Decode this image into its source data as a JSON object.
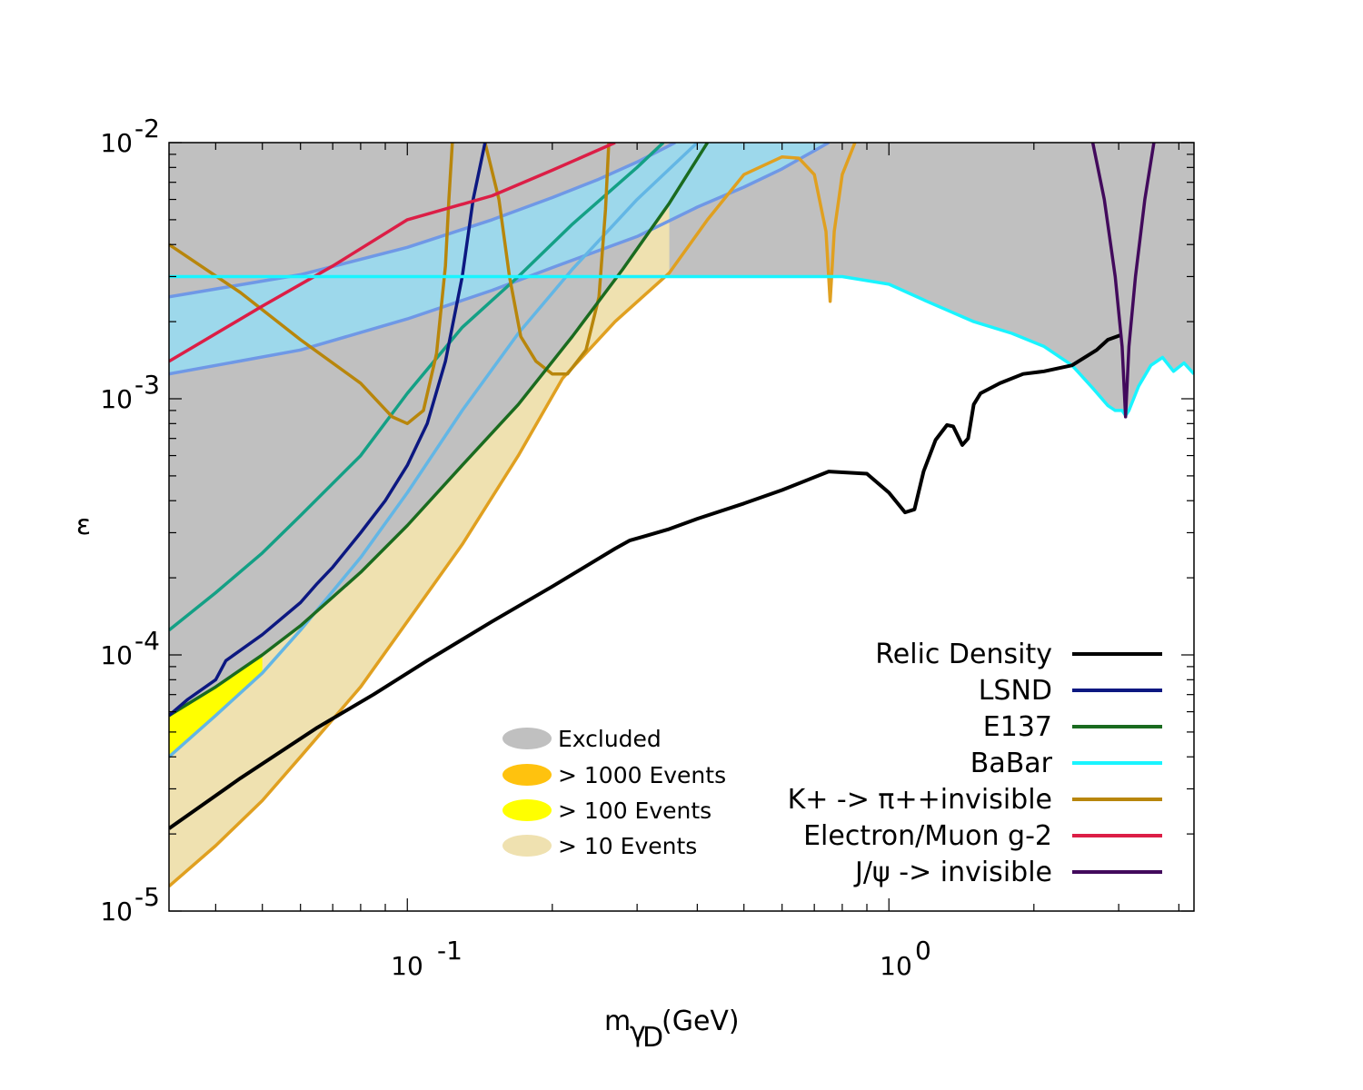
{
  "chart_data": {
    "type": "line",
    "title": "",
    "xlabel_main": "m",
    "xlabel_sub": "γ",
    "xlabel_subsub": "D",
    "xlabel_unit": "(GeV)",
    "ylabel": "ε",
    "xscale": "log",
    "yscale": "log",
    "xlim": [
      0.032,
      4.3
    ],
    "ylim": [
      1e-05,
      0.01
    ],
    "x_ticks": [
      {
        "value": 0.1,
        "base": "10",
        "exp": "-1"
      },
      {
        "value": 1,
        "base": "10",
        "exp": "0"
      }
    ],
    "y_ticks": [
      {
        "value": 1e-05,
        "base": "10",
        "exp": "-5"
      },
      {
        "value": 0.0001,
        "base": "10",
        "exp": "-4"
      },
      {
        "value": 0.001,
        "base": "10",
        "exp": "-3"
      },
      {
        "value": 0.01,
        "base": "10",
        "exp": "-2"
      }
    ],
    "legend_position": "bottom-right",
    "colors": {
      "excluded": "#c0c0c0",
      "light_blue_band": "#9dd8eb",
      "events_1000": "#ffc20e",
      "events_100": "#ffff00",
      "events_10": "#efe1b0"
    },
    "fill_legend": [
      {
        "label": "Excluded",
        "color": "#c0c0c0"
      },
      {
        "label": "> 1000 Events",
        "color": "#ffc20e"
      },
      {
        "label": "> 100 Events",
        "color": "#ffff00"
      },
      {
        "label": "> 10 Events",
        "color": "#efe1b0"
      }
    ],
    "series": [
      {
        "name": "Relic Density",
        "legend": true,
        "color": "#000000",
        "points": [
          [
            0.032,
            2.1e-05
          ],
          [
            0.045,
            3.3e-05
          ],
          [
            0.065,
            5.2e-05
          ],
          [
            0.085,
            7e-05
          ],
          [
            0.11,
            9.5e-05
          ],
          [
            0.15,
            0.000135
          ],
          [
            0.2,
            0.000185
          ],
          [
            0.27,
            0.00026
          ],
          [
            0.29,
            0.00028
          ],
          [
            0.31,
            0.00029
          ],
          [
            0.35,
            0.00031
          ],
          [
            0.4,
            0.00034
          ],
          [
            0.5,
            0.00039
          ],
          [
            0.6,
            0.00044
          ],
          [
            0.75,
            0.00052
          ],
          [
            0.9,
            0.00051
          ],
          [
            1.0,
            0.00043
          ],
          [
            1.08,
            0.00036
          ],
          [
            1.13,
            0.00037
          ],
          [
            1.18,
            0.00052
          ],
          [
            1.25,
            0.00069
          ],
          [
            1.32,
            0.00079
          ],
          [
            1.36,
            0.00078
          ],
          [
            1.42,
            0.00066
          ],
          [
            1.46,
            0.0007
          ],
          [
            1.5,
            0.00095
          ],
          [
            1.55,
            0.00105
          ],
          [
            1.7,
            0.00115
          ],
          [
            1.9,
            0.00125
          ],
          [
            2.1,
            0.00128
          ],
          [
            2.4,
            0.00135
          ],
          [
            2.7,
            0.00155
          ],
          [
            2.85,
            0.0017
          ],
          [
            3.05,
            0.00178
          ]
        ]
      },
      {
        "name": "LSND",
        "legend": true,
        "color": "#0c1881",
        "points": [
          [
            0.032,
            5.8e-05
          ],
          [
            0.035,
            6.7e-05
          ],
          [
            0.04,
            8e-05
          ],
          [
            0.042,
            9.5e-05
          ],
          [
            0.05,
            0.00012
          ],
          [
            0.06,
            0.00016
          ],
          [
            0.065,
            0.00019
          ],
          [
            0.07,
            0.00022
          ],
          [
            0.08,
            0.0003
          ],
          [
            0.09,
            0.0004
          ],
          [
            0.1,
            0.00055
          ],
          [
            0.11,
            0.0008
          ],
          [
            0.12,
            0.0014
          ],
          [
            0.13,
            0.003
          ],
          [
            0.137,
            0.006
          ],
          [
            0.145,
            0.01
          ]
        ]
      },
      {
        "name": "E137",
        "legend": true,
        "color": "#1a6b1f",
        "points": [
          [
            0.032,
            5.8e-05
          ],
          [
            0.04,
            7.5e-05
          ],
          [
            0.05,
            0.0001
          ],
          [
            0.06,
            0.00013
          ],
          [
            0.08,
            0.00021
          ],
          [
            0.1,
            0.00032
          ],
          [
            0.13,
            0.00055
          ],
          [
            0.17,
            0.00095
          ],
          [
            0.22,
            0.00175
          ],
          [
            0.28,
            0.0032
          ],
          [
            0.35,
            0.0058
          ],
          [
            0.42,
            0.01
          ]
        ]
      },
      {
        "name": "E137 upper",
        "legend": false,
        "color": "#14a085",
        "points": [
          [
            0.032,
            0.000125
          ],
          [
            0.04,
            0.000175
          ],
          [
            0.05,
            0.00025
          ],
          [
            0.06,
            0.00035
          ],
          [
            0.08,
            0.0006
          ],
          [
            0.1,
            0.00105
          ],
          [
            0.13,
            0.0019
          ],
          [
            0.17,
            0.003
          ],
          [
            0.22,
            0.0048
          ],
          [
            0.3,
            0.008
          ],
          [
            0.34,
            0.01
          ]
        ]
      },
      {
        "name": "Sensitivity (light blue)",
        "legend": false,
        "color": "#63b6e5",
        "points": [
          [
            0.032,
            4e-05
          ],
          [
            0.04,
            5.8e-05
          ],
          [
            0.05,
            8.5e-05
          ],
          [
            0.06,
            0.000125
          ],
          [
            0.08,
            0.00024
          ],
          [
            0.1,
            0.00043
          ],
          [
            0.13,
            0.0009
          ],
          [
            0.17,
            0.0018
          ],
          [
            0.22,
            0.0032
          ],
          [
            0.3,
            0.006
          ],
          [
            0.4,
            0.01
          ]
        ]
      },
      {
        "name": "BaBar",
        "legend": true,
        "color": "#19f4ff",
        "points": [
          [
            0.032,
            0.003
          ],
          [
            0.2,
            0.003
          ],
          [
            0.5,
            0.003
          ],
          [
            0.8,
            0.003
          ],
          [
            1.0,
            0.0028
          ],
          [
            1.2,
            0.0024
          ],
          [
            1.5,
            0.002
          ],
          [
            1.8,
            0.0018
          ],
          [
            2.1,
            0.0016
          ],
          [
            2.4,
            0.00135
          ],
          [
            2.65,
            0.0011
          ],
          [
            2.85,
            0.00094
          ],
          [
            2.95,
            0.0009
          ],
          [
            3.05,
            0.0009
          ],
          [
            3.1,
            0.00086
          ],
          [
            3.15,
            0.0009
          ],
          [
            3.3,
            0.00112
          ],
          [
            3.5,
            0.00135
          ],
          [
            3.7,
            0.00145
          ],
          [
            3.9,
            0.00128
          ],
          [
            4.1,
            0.00138
          ],
          [
            4.3,
            0.00125
          ]
        ]
      },
      {
        "name": "K+ -> π++invisible",
        "legend": true,
        "color": "#b8860b",
        "points": [
          [
            0.032,
            0.004
          ],
          [
            0.045,
            0.0026
          ],
          [
            0.06,
            0.0017
          ],
          [
            0.08,
            0.00115
          ],
          [
            0.093,
            0.00085
          ],
          [
            0.1,
            0.0008
          ],
          [
            0.108,
            0.0009
          ],
          [
            0.115,
            0.0015
          ],
          [
            0.12,
            0.0033
          ],
          [
            0.122,
            0.006
          ],
          [
            0.124,
            0.01
          ]
        ]
      },
      {
        "name": "K+ -> π++invisible (right)",
        "legend": false,
        "color": "#b8860b",
        "points": [
          [
            0.145,
            0.01
          ],
          [
            0.155,
            0.006
          ],
          [
            0.163,
            0.003
          ],
          [
            0.172,
            0.00175
          ],
          [
            0.185,
            0.0014
          ],
          [
            0.2,
            0.00125
          ],
          [
            0.215,
            0.00125
          ],
          [
            0.235,
            0.00155
          ],
          [
            0.25,
            0.0025
          ],
          [
            0.258,
            0.0055
          ],
          [
            0.262,
            0.01
          ]
        ]
      },
      {
        "name": "> 10 Events boundary",
        "legend": false,
        "color": "#e0a020",
        "points": [
          [
            0.032,
            1.25e-05
          ],
          [
            0.04,
            1.8e-05
          ],
          [
            0.05,
            2.7e-05
          ],
          [
            0.06,
            4e-05
          ],
          [
            0.08,
            7.5e-05
          ],
          [
            0.1,
            0.000135
          ],
          [
            0.13,
            0.00027
          ],
          [
            0.17,
            0.0006
          ],
          [
            0.21,
            0.0012
          ],
          [
            0.27,
            0.002
          ],
          [
            0.35,
            0.0031
          ],
          [
            0.42,
            0.005
          ],
          [
            0.5,
            0.0075
          ],
          [
            0.6,
            0.0088
          ],
          [
            0.65,
            0.0087
          ],
          [
            0.7,
            0.0075
          ],
          [
            0.74,
            0.0045
          ],
          [
            0.755,
            0.0024
          ],
          [
            0.77,
            0.0045
          ],
          [
            0.8,
            0.0075
          ],
          [
            0.85,
            0.01
          ]
        ]
      },
      {
        "name": "Electron/Muon g-2",
        "legend": true,
        "color": "#dc1e46",
        "points": [
          [
            0.032,
            0.0014
          ],
          [
            0.05,
            0.0023
          ],
          [
            0.07,
            0.0033
          ],
          [
            0.1,
            0.005
          ],
          [
            0.15,
            0.0062
          ],
          [
            0.2,
            0.0078
          ],
          [
            0.27,
            0.01
          ]
        ]
      },
      {
        "name": "g-2 band upper",
        "legend": false,
        "color": "#6f98e6",
        "points": [
          [
            0.032,
            0.0025
          ],
          [
            0.06,
            0.00305
          ],
          [
            0.1,
            0.0039
          ],
          [
            0.15,
            0.005
          ],
          [
            0.2,
            0.0061
          ],
          [
            0.25,
            0.0072
          ],
          [
            0.3,
            0.0084
          ],
          [
            0.36,
            0.01
          ]
        ]
      },
      {
        "name": "g-2 band lower",
        "legend": false,
        "color": "#6f98e6",
        "points": [
          [
            0.032,
            0.00125
          ],
          [
            0.06,
            0.00155
          ],
          [
            0.1,
            0.00205
          ],
          [
            0.15,
            0.00265
          ],
          [
            0.2,
            0.00325
          ],
          [
            0.3,
            0.0043
          ],
          [
            0.4,
            0.0056
          ],
          [
            0.5,
            0.0067
          ],
          [
            0.6,
            0.0079
          ],
          [
            0.75,
            0.01
          ]
        ]
      },
      {
        "name": "J/ψ -> invisible",
        "legend": true,
        "color": "#420a5c",
        "points": [
          [
            2.65,
            0.01
          ],
          [
            2.8,
            0.006
          ],
          [
            2.95,
            0.003
          ],
          [
            3.05,
            0.0016
          ],
          [
            3.1,
            0.00085
          ],
          [
            3.15,
            0.0016
          ],
          [
            3.25,
            0.003
          ],
          [
            3.4,
            0.006
          ],
          [
            3.55,
            0.01
          ]
        ]
      }
    ]
  }
}
